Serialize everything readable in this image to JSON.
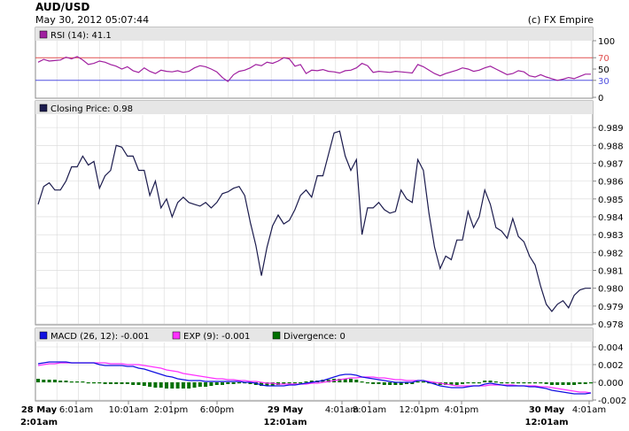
{
  "header": {
    "title": "AUD/USD",
    "subtitle": "May 30, 2012 05:07:44",
    "credit": "(c) FX Empire"
  },
  "colors": {
    "price_line": "#1b1b4d",
    "rsi_line": "#a020a0",
    "rsi_upper": "#e05050",
    "rsi_lower": "#5050e0",
    "macd_line": "#1010e0",
    "exp_line": "#ff30ff",
    "divergence": "#007000",
    "panel_bg": "#ffffff",
    "legend_bg": "#e6e6e6",
    "grid": "#d8d8d8"
  },
  "rsi": {
    "legend": "RSI (14): 41.1",
    "ticks": [
      "100",
      "70",
      "50",
      "30",
      "0"
    ],
    "upper_label": "70",
    "lower_label": "30"
  },
  "price": {
    "legend": "Closing Price: 0.98",
    "ticks": [
      "0.989",
      "0.988",
      "0.987",
      "0.986",
      "0.985",
      "0.984",
      "0.983",
      "0.982",
      "0.981",
      "0.980",
      "0.979",
      "0.978"
    ]
  },
  "macd": {
    "legend_macd": "MACD (26, 12): -0.001",
    "legend_exp": "EXP (9): -0.001",
    "legend_div": "Divergence: 0",
    "ticks": [
      "0.004",
      "0.002",
      "0.000",
      "-0.002"
    ]
  },
  "x_axis": {
    "labels": [
      "6:01am",
      "10:01am",
      "2:01pm",
      "6:00pm",
      "4:01am",
      "8:01am",
      "12:01pm",
      "4:01pm",
      "4:01am"
    ],
    "bold_top": [
      "28 May",
      "29 May",
      "30 May"
    ],
    "bold_bottom": [
      "2:01am",
      "12:01am",
      "12:01am"
    ]
  },
  "chart_data": [
    {
      "type": "line",
      "title": "RSI (14): 41.1",
      "ylim": [
        0,
        100
      ],
      "reference_lines": [
        70,
        30
      ],
      "x": [
        0,
        1,
        2,
        3,
        4,
        5,
        6,
        7,
        8,
        9,
        10,
        11,
        12,
        13,
        14,
        15,
        16,
        17,
        18,
        19,
        20,
        21,
        22,
        23,
        24,
        25,
        26,
        27,
        28,
        29,
        30,
        31,
        32,
        33,
        34,
        35,
        36,
        37,
        38,
        39,
        40,
        41,
        42,
        43,
        44,
        45,
        46,
        47,
        48,
        49,
        50,
        51,
        52,
        53,
        54,
        55,
        56,
        57,
        58,
        59,
        60,
        61,
        62,
        63,
        64,
        65,
        66,
        67,
        68,
        69,
        70,
        71,
        72,
        73,
        74,
        75,
        76,
        77,
        78,
        79,
        80,
        81,
        82,
        83,
        84,
        85,
        86,
        87,
        88,
        89,
        90,
        91,
        92,
        93,
        94,
        95,
        96,
        97,
        98,
        99
      ],
      "values": [
        62,
        67,
        64,
        65,
        66,
        71,
        68,
        72,
        66,
        58,
        60,
        64,
        62,
        58,
        55,
        50,
        54,
        47,
        44,
        52,
        46,
        42,
        48,
        46,
        45,
        47,
        44,
        46,
        52,
        56,
        54,
        50,
        45,
        35,
        28,
        40,
        46,
        48,
        52,
        58,
        56,
        62,
        60,
        64,
        70,
        68,
        55,
        58,
        42,
        48,
        47,
        49,
        46,
        45,
        43,
        47,
        48,
        52,
        60,
        56,
        44,
        46,
        45,
        44,
        46,
        45,
        44,
        43,
        58,
        54,
        48,
        42,
        38,
        42,
        45,
        48,
        52,
        50,
        46,
        48,
        52,
        55,
        50,
        45,
        40,
        42,
        47,
        45,
        38,
        36,
        40,
        36,
        33,
        30,
        32,
        35,
        33,
        37,
        41,
        41
      ]
    },
    {
      "type": "line",
      "title": "Closing Price: 0.98",
      "ylim": [
        0.978,
        0.9897
      ],
      "x": [
        0,
        1,
        2,
        3,
        4,
        5,
        6,
        7,
        8,
        9,
        10,
        11,
        12,
        13,
        14,
        15,
        16,
        17,
        18,
        19,
        20,
        21,
        22,
        23,
        24,
        25,
        26,
        27,
        28,
        29,
        30,
        31,
        32,
        33,
        34,
        35,
        36,
        37,
        38,
        39,
        40,
        41,
        42,
        43,
        44,
        45,
        46,
        47,
        48,
        49,
        50,
        51,
        52,
        53,
        54,
        55,
        56,
        57,
        58,
        59,
        60,
        61,
        62,
        63,
        64,
        65,
        66,
        67,
        68,
        69,
        70,
        71,
        72,
        73,
        74,
        75,
        76,
        77,
        78,
        79,
        80,
        81,
        82,
        83,
        84,
        85,
        86,
        87,
        88,
        89,
        90,
        91,
        92,
        93,
        94,
        95,
        96,
        97,
        98,
        99
      ],
      "values": [
        0.9847,
        0.9857,
        0.9859,
        0.9855,
        0.9855,
        0.986,
        0.9868,
        0.9868,
        0.9874,
        0.9869,
        0.9871,
        0.9856,
        0.9863,
        0.9866,
        0.988,
        0.9879,
        0.9874,
        0.9874,
        0.9866,
        0.9866,
        0.9852,
        0.986,
        0.9845,
        0.985,
        0.984,
        0.9848,
        0.9851,
        0.9848,
        0.9847,
        0.9846,
        0.9848,
        0.9845,
        0.9848,
        0.9853,
        0.9854,
        0.9856,
        0.9857,
        0.9852,
        0.9837,
        0.9824,
        0.9807,
        0.9823,
        0.9835,
        0.9841,
        0.9836,
        0.9838,
        0.9844,
        0.9852,
        0.9855,
        0.9851,
        0.9863,
        0.9863,
        0.9875,
        0.9887,
        0.9888,
        0.9874,
        0.9866,
        0.9872,
        0.983,
        0.9845,
        0.9845,
        0.9848,
        0.9844,
        0.9842,
        0.9843,
        0.9855,
        0.985,
        0.9848,
        0.9872,
        0.9866,
        0.9842,
        0.9823,
        0.9811,
        0.9818,
        0.9816,
        0.9827,
        0.9827,
        0.9843,
        0.9834,
        0.984,
        0.9855,
        0.9847,
        0.9834,
        0.9832,
        0.9828,
        0.9839,
        0.9829,
        0.9826,
        0.9818,
        0.9813,
        0.9801,
        0.9791,
        0.9787,
        0.9791,
        0.9793,
        0.9789,
        0.9796,
        0.9799,
        0.98,
        0.98
      ]
    },
    {
      "type": "line",
      "title": "MACD (26, 12): -0.001",
      "ylim": [
        -0.002,
        0.0045
      ],
      "series": [
        {
          "name": "MACD (26, 12): -0.001",
          "values": [
            0.0021,
            0.0022,
            0.0023,
            0.0023,
            0.0023,
            0.0023,
            0.0022,
            0.0022,
            0.0022,
            0.0022,
            0.0022,
            0.002,
            0.0019,
            0.0019,
            0.0019,
            0.0019,
            0.0018,
            0.0018,
            0.0016,
            0.0015,
            0.0013,
            0.0011,
            0.0009,
            0.0007,
            0.0006,
            0.0004,
            0.0003,
            0.0002,
            0.0002,
            0.0002,
            0.0001,
            0.0001,
            0.0001,
            0.0001,
            0.0001,
            0.0001,
            0.0001,
            0.0,
            0.0,
            -0.0001,
            -0.0003,
            -0.0004,
            -0.0004,
            -0.0004,
            -0.0004,
            -0.0003,
            -0.0003,
            -0.0002,
            -0.0001,
            0.0,
            0.0001,
            0.0002,
            0.0004,
            0.0006,
            0.0008,
            0.0009,
            0.0009,
            0.0008,
            0.0006,
            0.0005,
            0.0004,
            0.0003,
            0.0002,
            0.0001,
            0.0,
            0.0,
            0.0,
            0.0,
            0.0002,
            0.0002,
            0.0,
            -0.0002,
            -0.0004,
            -0.0005,
            -0.0006,
            -0.0006,
            -0.0006,
            -0.0005,
            -0.0004,
            -0.0004,
            -0.0002,
            -0.0001,
            -0.0002,
            -0.0003,
            -0.0004,
            -0.0004,
            -0.0004,
            -0.0004,
            -0.0005,
            -0.0005,
            -0.0006,
            -0.0007,
            -0.0009,
            -0.001,
            -0.0011,
            -0.0012,
            -0.0013,
            -0.0013,
            -0.0013,
            -0.0012
          ]
        },
        {
          "name": "EXP (9): -0.001",
          "values": [
            0.0019,
            0.002,
            0.0021,
            0.0021,
            0.0022,
            0.0022,
            0.0022,
            0.0022,
            0.0022,
            0.0022,
            0.0022,
            0.0022,
            0.0022,
            0.0021,
            0.0021,
            0.0021,
            0.002,
            0.002,
            0.002,
            0.0019,
            0.0018,
            0.0017,
            0.0016,
            0.0014,
            0.0013,
            0.0012,
            0.001,
            0.0009,
            0.0008,
            0.0007,
            0.0006,
            0.0005,
            0.0004,
            0.0004,
            0.0003,
            0.0003,
            0.0002,
            0.0002,
            0.0001,
            0.0001,
            0.0,
            -0.0001,
            -0.0001,
            -0.0002,
            -0.0002,
            -0.0002,
            -0.0002,
            -0.0002,
            -0.0002,
            -0.0001,
            -0.0001,
            0.0,
            0.0001,
            0.0002,
            0.0003,
            0.0004,
            0.0005,
            0.0005,
            0.0006,
            0.0006,
            0.0006,
            0.0005,
            0.0005,
            0.0004,
            0.0003,
            0.0003,
            0.0002,
            0.0002,
            0.0002,
            0.0002,
            0.0001,
            0.0,
            -0.0001,
            -0.0002,
            -0.0003,
            -0.0004,
            -0.0004,
            -0.0004,
            -0.0004,
            -0.0004,
            -0.0004,
            -0.0003,
            -0.0003,
            -0.0003,
            -0.0003,
            -0.0003,
            -0.0004,
            -0.0004,
            -0.0004,
            -0.0004,
            -0.0005,
            -0.0005,
            -0.0006,
            -0.0007,
            -0.0008,
            -0.0009,
            -0.001,
            -0.0011,
            -0.0011,
            -0.0012
          ]
        },
        {
          "name": "Divergence: 0",
          "values": [
            0.0004,
            0.0003,
            0.0003,
            0.0003,
            0.0002,
            0.0002,
            0.0001,
            0.0001,
            0.0001,
            0.0,
            0.0,
            -0.0001,
            -0.0002,
            -0.0002,
            -0.0002,
            -0.0002,
            -0.0002,
            -0.0003,
            -0.0003,
            -0.0004,
            -0.0005,
            -0.0006,
            -0.0006,
            -0.0007,
            -0.0007,
            -0.0007,
            -0.0007,
            -0.0007,
            -0.0006,
            -0.0005,
            -0.0005,
            -0.0004,
            -0.0003,
            -0.0003,
            -0.0002,
            -0.0002,
            -0.0001,
            -0.0001,
            -0.0002,
            -0.0003,
            -0.0004,
            -0.0004,
            -0.0004,
            -0.0003,
            -0.0002,
            -0.0001,
            -0.0001,
            0.0,
            0.0001,
            0.0002,
            0.0002,
            0.0003,
            0.0003,
            0.0004,
            0.0004,
            0.0004,
            0.0004,
            0.0003,
            0.0001,
            -0.0001,
            -0.0002,
            -0.0002,
            -0.0003,
            -0.0003,
            -0.0003,
            -0.0003,
            -0.0002,
            -0.0002,
            0.0001,
            0.0001,
            -0.0001,
            -0.0002,
            -0.0003,
            -0.0003,
            -0.0003,
            -0.0003,
            -0.0002,
            -0.0001,
            0.0,
            0.0,
            0.0002,
            0.0002,
            0.0001,
            0.0,
            -0.0001,
            -0.0001,
            0.0,
            0.0,
            -0.0001,
            -0.0001,
            -0.0001,
            -0.0002,
            -0.0003,
            -0.0003,
            -0.0003,
            -0.0003,
            -0.0003,
            -0.0002,
            -0.0002,
            0.0
          ]
        }
      ]
    }
  ]
}
